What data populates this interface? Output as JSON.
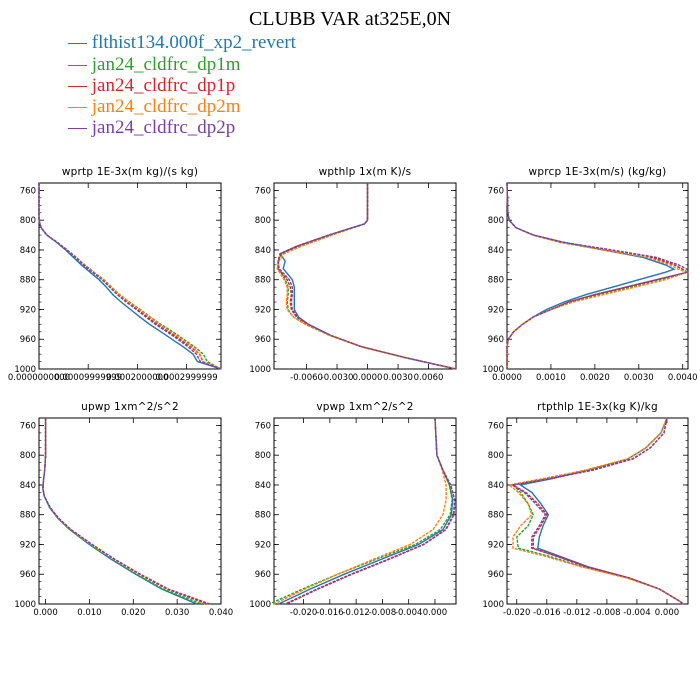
{
  "title": "CLUBB VAR at325E,0N",
  "legend": [
    {
      "label": "flthist134.000f_xp2_revert",
      "color": "#1f77b4"
    },
    {
      "label": "jan24_cldfrc_dp1m",
      "color": "#2ca02c"
    },
    {
      "label": "jan24_cldfrc_dp1p",
      "color": "#d62728"
    },
    {
      "label": "jan24_cldfrc_dp2m",
      "color": "#ff7f0e"
    },
    {
      "label": "jan24_cldfrc_dp2p",
      "color": "#7b3fa0"
    }
  ],
  "chart_data": [
    {
      "type": "line",
      "title": "wprtp  1E-3x(m kg)/(s kg)",
      "y_ticks": [
        "760",
        "800",
        "840",
        "880",
        "920",
        "960",
        "1000"
      ],
      "x_ticks": [
        {
          "v": 0,
          "label": "0.0000000000"
        },
        {
          "v": 0.0001,
          "label": "0.00009999999"
        },
        {
          "v": 0.0002,
          "label": "0.0002000000"
        },
        {
          "v": 0.0003,
          "label": "0.0002999999"
        }
      ],
      "xlim": [
        0,
        0.00037
      ],
      "ylim": [
        1000,
        750
      ],
      "y": [
        750,
        790,
        800,
        810,
        820,
        830,
        840,
        850,
        860,
        870,
        880,
        890,
        900,
        910,
        920,
        930,
        940,
        950,
        960,
        970,
        980,
        990,
        1000
      ],
      "series": [
        {
          "color": "#1f77b4",
          "x": [
            0,
            0,
            0,
            4e-06,
            1.6e-05,
            3.6e-05,
            5.4e-05,
            7e-05,
            8.6e-05,
            0.000104,
            0.000122,
            0.000137,
            0.00015,
            0.000167,
            0.000186,
            0.000205,
            0.000225,
            0.000248,
            0.00027,
            0.000293,
            0.000313,
            0.000322,
            0.00037
          ]
        },
        {
          "color": "#2ca02c",
          "x": [
            0,
            0,
            0,
            4e-06,
            1.6e-05,
            3.8e-05,
            5.8e-05,
            7.6e-05,
            9.3e-05,
            0.000112,
            0.000132,
            0.000148,
            0.000164,
            0.000184,
            0.000206,
            0.000226,
            0.000248,
            0.000272,
            0.000294,
            0.000316,
            0.000334,
            0.000342,
            0.00037
          ]
        },
        {
          "color": "#d62728",
          "x": [
            0,
            0,
            0,
            4e-06,
            1.6e-05,
            3.7e-05,
            5.7e-05,
            7.5e-05,
            9.2e-05,
            0.000111,
            0.00013,
            0.000146,
            0.000161,
            0.00018,
            0.000201,
            0.00022,
            0.000241,
            0.000264,
            0.000286,
            0.000308,
            0.000326,
            0.000333,
            0.00037
          ]
        },
        {
          "color": "#ff7f0e",
          "x": [
            0,
            0,
            0,
            4e-06,
            1.6e-05,
            3.7e-05,
            5.7e-05,
            7.5e-05,
            9.2e-05,
            0.000111,
            0.00013,
            0.000147,
            0.000163,
            0.000183,
            0.000204,
            0.000224,
            0.000245,
            0.000268,
            0.00029,
            0.000311,
            0.000327,
            0.000334,
            0.00037
          ]
        },
        {
          "color": "#7b3fa0",
          "x": [
            0,
            0,
            0,
            4e-06,
            1.6e-05,
            3.7e-05,
            5.6e-05,
            7.4e-05,
            9e-05,
            0.000109,
            0.000128,
            0.000144,
            0.000159,
            0.000177,
            0.000198,
            0.000217,
            0.000237,
            0.00026,
            0.000282,
            0.000303,
            0.00032,
            0.000328,
            0.00037
          ]
        }
      ]
    },
    {
      "type": "line",
      "title": "wpthlp  1x(m K)/s",
      "y_ticks": [
        "760",
        "800",
        "840",
        "880",
        "920",
        "960",
        "1000"
      ],
      "x_ticks": [
        {
          "v": -0.006,
          "label": "-0.0060"
        },
        {
          "v": -0.003,
          "label": "-0.0030"
        },
        {
          "v": 0,
          "label": "0.0000"
        },
        {
          "v": 0.003,
          "label": "0.0030"
        },
        {
          "v": 0.006,
          "label": "0.0060"
        }
      ],
      "xlim": [
        -0.0092,
        0.0087
      ],
      "ylim": [
        1000,
        750
      ],
      "y": [
        750,
        800,
        805,
        820,
        835,
        845,
        855,
        865,
        880,
        890,
        900,
        910,
        920,
        930,
        940,
        955,
        970,
        985,
        1000
      ],
      "series": [
        {
          "color": "#1f77b4",
          "x": [
            0,
            0,
            -0.0003,
            -0.0038,
            -0.0069,
            -0.0086,
            -0.0081,
            -0.0083,
            -0.0074,
            -0.0072,
            -0.0072,
            -0.0072,
            -0.0072,
            -0.0068,
            -0.0058,
            -0.0036,
            -0.0006,
            0.0038,
            0.0087
          ]
        },
        {
          "color": "#2ca02c",
          "x": [
            0,
            0,
            -0.0003,
            -0.0036,
            -0.0066,
            -0.0084,
            -0.0088,
            -0.0088,
            -0.0081,
            -0.0078,
            -0.0078,
            -0.0079,
            -0.0078,
            -0.0073,
            -0.0061,
            -0.0037,
            -0.0006,
            0.0037,
            0.0087
          ]
        },
        {
          "color": "#d62728",
          "x": [
            0,
            0,
            -0.0003,
            -0.0038,
            -0.007,
            -0.0086,
            -0.0088,
            -0.0088,
            -0.0079,
            -0.0076,
            -0.0075,
            -0.0076,
            -0.0075,
            -0.007,
            -0.0059,
            -0.0036,
            -0.0006,
            0.0038,
            0.0087
          ]
        },
        {
          "color": "#ff7f0e",
          "x": [
            0,
            0,
            -0.0003,
            -0.0035,
            -0.0065,
            -0.0082,
            -0.0087,
            -0.0089,
            -0.0082,
            -0.0079,
            -0.0079,
            -0.008,
            -0.0079,
            -0.0073,
            -0.0061,
            -0.0037,
            -0.0006,
            0.0037,
            0.0087
          ]
        },
        {
          "color": "#7b3fa0",
          "x": [
            0,
            0,
            -0.0003,
            -0.0038,
            -0.0069,
            -0.0085,
            -0.0088,
            -0.0087,
            -0.0077,
            -0.0074,
            -0.0074,
            -0.0075,
            -0.0074,
            -0.0069,
            -0.0058,
            -0.0036,
            -0.0006,
            0.0038,
            0.0087
          ]
        }
      ]
    },
    {
      "type": "line",
      "title": "wprcp  1E-3x(m/s) (kg/kg)",
      "y_ticks": [
        "760",
        "800",
        "840",
        "880",
        "920",
        "960",
        "1000"
      ],
      "x_ticks": [
        {
          "v": 0,
          "label": "0.0000"
        },
        {
          "v": 0.001,
          "label": "0.0010"
        },
        {
          "v": 0.002,
          "label": "0.0020"
        },
        {
          "v": 0.003,
          "label": "0.0030"
        },
        {
          "v": 0.004,
          "label": "0.0040"
        }
      ],
      "xlim": [
        0,
        0.00412
      ],
      "ylim": [
        1000,
        750
      ],
      "y": [
        750,
        790,
        800,
        810,
        820,
        830,
        840,
        850,
        860,
        866,
        870,
        880,
        890,
        900,
        910,
        920,
        930,
        940,
        950,
        960,
        970,
        980,
        990,
        1000
      ],
      "series": [
        {
          "color": "#1f77b4",
          "x": [
            0,
            2e-05,
            5e-05,
            0.0002,
            0.0006,
            0.0013,
            0.0022,
            0.0031,
            0.0036,
            0.0038,
            0.0036,
            0.003,
            0.0024,
            0.0018,
            0.0013,
            0.0009,
            0.0006,
            0.00035,
            0.00015,
            3e-05,
            0,
            0,
            0,
            0
          ]
        },
        {
          "color": "#2ca02c",
          "x": [
            0,
            2e-05,
            5e-05,
            0.0002,
            0.0006,
            0.0013,
            0.0023,
            0.0033,
            0.0038,
            0.004,
            0.0041,
            0.0035,
            0.0028,
            0.0021,
            0.0015,
            0.001,
            0.0006,
            0.00035,
            0.00015,
            3e-05,
            0,
            0,
            0,
            0
          ]
        },
        {
          "color": "#d62728",
          "x": [
            0,
            2e-05,
            5e-05,
            0.0002,
            0.0006,
            0.0013,
            0.0023,
            0.0033,
            0.0038,
            0.004,
            0.0041,
            0.0034,
            0.0027,
            0.002,
            0.0014,
            0.001,
            0.0006,
            0.00035,
            0.00015,
            3e-05,
            0,
            0,
            0,
            0
          ]
        },
        {
          "color": "#ff7f0e",
          "x": [
            0,
            2e-05,
            5e-05,
            0.0002,
            0.0006,
            0.0012,
            0.0022,
            0.0032,
            0.0037,
            0.0039,
            0.0041,
            0.0036,
            0.0029,
            0.0022,
            0.0015,
            0.001,
            0.0006,
            0.00035,
            0.00015,
            3e-05,
            0,
            0,
            0,
            0
          ]
        },
        {
          "color": "#7b3fa0",
          "x": [
            0,
            2e-05,
            5e-05,
            0.0002,
            0.0006,
            0.0013,
            0.0024,
            0.0034,
            0.0039,
            0.0041,
            0.0041,
            0.0034,
            0.0027,
            0.002,
            0.0014,
            0.001,
            0.0006,
            0.00035,
            0.00015,
            3e-05,
            0,
            0,
            0,
            0
          ]
        }
      ]
    },
    {
      "type": "line",
      "title": "upwp  1xm^2/s^2",
      "y_ticks": [
        "760",
        "800",
        "840",
        "880",
        "920",
        "960",
        "1000"
      ],
      "x_ticks": [
        {
          "v": 0,
          "label": "0.000"
        },
        {
          "v": 0.01,
          "label": "0.010"
        },
        {
          "v": 0.02,
          "label": "0.020"
        },
        {
          "v": 0.03,
          "label": "0.030"
        },
        {
          "v": 0.04,
          "label": "0.040"
        }
      ],
      "xlim": [
        -0.0015,
        0.04
      ],
      "ylim": [
        1000,
        750
      ],
      "y": [
        750,
        800,
        820,
        835,
        845,
        855,
        870,
        885,
        900,
        920,
        940,
        960,
        980,
        1000
      ],
      "series": [
        {
          "color": "#1f77b4",
          "x": [
            0,
            0,
            -0.0002,
            -0.0005,
            -0.0006,
            -0.0003,
            0.0009,
            0.0028,
            0.0055,
            0.01,
            0.015,
            0.0205,
            0.0265,
            0.0345
          ]
        },
        {
          "color": "#2ca02c",
          "x": [
            0,
            0,
            -0.0002,
            -0.0005,
            -0.0006,
            -0.0003,
            0.0009,
            0.0028,
            0.0055,
            0.0102,
            0.0153,
            0.0208,
            0.0268,
            0.0355
          ]
        },
        {
          "color": "#d62728",
          "x": [
            0,
            0,
            -0.0002,
            -0.0005,
            -0.0006,
            -0.0003,
            0.001,
            0.003,
            0.0058,
            0.0106,
            0.0158,
            0.0216,
            0.028,
            0.0375
          ]
        },
        {
          "color": "#ff7f0e",
          "x": [
            0,
            0,
            -0.0002,
            -0.0005,
            -0.0006,
            -0.0003,
            0.001,
            0.0029,
            0.0057,
            0.0104,
            0.0156,
            0.0212,
            0.0276,
            0.0365
          ]
        },
        {
          "color": "#7b3fa0",
          "x": [
            0,
            0,
            -0.0002,
            -0.0005,
            -0.0006,
            -0.0003,
            0.001,
            0.003,
            0.0058,
            0.0106,
            0.0158,
            0.0215,
            0.0278,
            0.037
          ]
        }
      ]
    },
    {
      "type": "line",
      "title": "vpwp  1xm^2/s^2",
      "y_ticks": [
        "760",
        "800",
        "840",
        "880",
        "920",
        "960",
        "1000"
      ],
      "x_ticks": [
        {
          "v": -0.02,
          "label": "-0.020"
        },
        {
          "v": -0.016,
          "label": "-0.016"
        },
        {
          "v": -0.012,
          "label": "-0.012"
        },
        {
          "v": -0.008,
          "label": "-0.008"
        },
        {
          "v": -0.004,
          "label": "-0.004"
        },
        {
          "v": 0,
          "label": "0.000"
        }
      ],
      "xlim": [
        -0.0245,
        0.0032
      ],
      "ylim": [
        1000,
        750
      ],
      "y": [
        750,
        800,
        820,
        840,
        860,
        880,
        900,
        920,
        940,
        960,
        980,
        1000
      ],
      "series": [
        {
          "color": "#1f77b4",
          "x": [
            0,
            0.0003,
            0.0012,
            0.0022,
            0.0027,
            0.0025,
            0.0012,
            -0.0025,
            -0.0082,
            -0.0138,
            -0.019,
            -0.0238
          ]
        },
        {
          "color": "#2ca02c",
          "x": [
            0,
            0.0003,
            0.0012,
            0.0022,
            0.0026,
            0.0023,
            0.0008,
            -0.003,
            -0.009,
            -0.0148,
            -0.0202,
            -0.0252
          ]
        },
        {
          "color": "#d62728",
          "x": [
            0,
            0.0003,
            0.0012,
            0.0024,
            0.003,
            0.0028,
            0.0016,
            -0.0018,
            -0.0072,
            -0.0128,
            -0.018,
            -0.0228
          ]
        },
        {
          "color": "#ff7f0e",
          "x": [
            0,
            0.0003,
            0.0011,
            0.0017,
            0.0017,
            0.0012,
            -0.0003,
            -0.0038,
            -0.0094,
            -0.0148,
            -0.0198,
            -0.0245
          ]
        },
        {
          "color": "#7b3fa0",
          "x": [
            0,
            0.0003,
            0.0012,
            0.0024,
            0.003,
            0.0029,
            0.0017,
            -0.0017,
            -0.007,
            -0.0126,
            -0.0178,
            -0.0226
          ]
        }
      ]
    },
    {
      "type": "line",
      "title": "rtpthlp  1E-3x(kg K)/kg",
      "y_ticks": [
        "760",
        "800",
        "840",
        "880",
        "920",
        "960",
        "1000"
      ],
      "x_ticks": [
        {
          "v": -0.02,
          "label": "-0.020"
        },
        {
          "v": -0.016,
          "label": "-0.016"
        },
        {
          "v": -0.012,
          "label": "-0.012"
        },
        {
          "v": -0.008,
          "label": "-0.008"
        },
        {
          "v": -0.004,
          "label": "-0.004"
        },
        {
          "v": 0,
          "label": "0.000"
        }
      ],
      "xlim": [
        -0.0213,
        0.0028
      ],
      "ylim": [
        1000,
        750
      ],
      "y": [
        750,
        770,
        790,
        805,
        820,
        832,
        840,
        850,
        865,
        880,
        895,
        910,
        925,
        935,
        950,
        965,
        980,
        995,
        1000
      ],
      "series": [
        {
          "color": "#1f77b4",
          "x": [
            0,
            -0.0008,
            -0.0028,
            -0.0052,
            -0.0105,
            -0.0155,
            -0.0195,
            -0.018,
            -0.0168,
            -0.0158,
            -0.0165,
            -0.017,
            -0.0172,
            -0.0145,
            -0.0105,
            -0.005,
            -0.001,
            0.0015,
            0.0022
          ]
        },
        {
          "color": "#2ca02c",
          "x": [
            0,
            -0.0008,
            -0.0028,
            -0.0052,
            -0.0108,
            -0.0165,
            -0.0205,
            -0.0195,
            -0.0185,
            -0.0178,
            -0.0185,
            -0.02,
            -0.0198,
            -0.016,
            -0.0112,
            -0.0052,
            -0.001,
            0.0015,
            0.0022
          ]
        },
        {
          "color": "#d62728",
          "x": [
            0,
            -0.0004,
            -0.0022,
            -0.0045,
            -0.0098,
            -0.0158,
            -0.0205,
            -0.0188,
            -0.0172,
            -0.016,
            -0.0168,
            -0.0178,
            -0.0178,
            -0.0148,
            -0.0106,
            -0.005,
            -0.001,
            0.0015,
            0.0022
          ]
        },
        {
          "color": "#ff7f0e",
          "x": [
            0,
            -0.0008,
            -0.0028,
            -0.0052,
            -0.0108,
            -0.0168,
            -0.021,
            -0.0198,
            -0.0185,
            -0.018,
            -0.0195,
            -0.0205,
            -0.0205,
            -0.0165,
            -0.0114,
            -0.0053,
            -0.001,
            0.0015,
            0.0022
          ]
        },
        {
          "color": "#7b3fa0",
          "x": [
            0,
            -0.0004,
            -0.0022,
            -0.0046,
            -0.01,
            -0.016,
            -0.0206,
            -0.019,
            -0.0175,
            -0.0162,
            -0.017,
            -0.018,
            -0.018,
            -0.015,
            -0.0107,
            -0.005,
            -0.001,
            0.0015,
            0.0022
          ]
        }
      ]
    }
  ]
}
